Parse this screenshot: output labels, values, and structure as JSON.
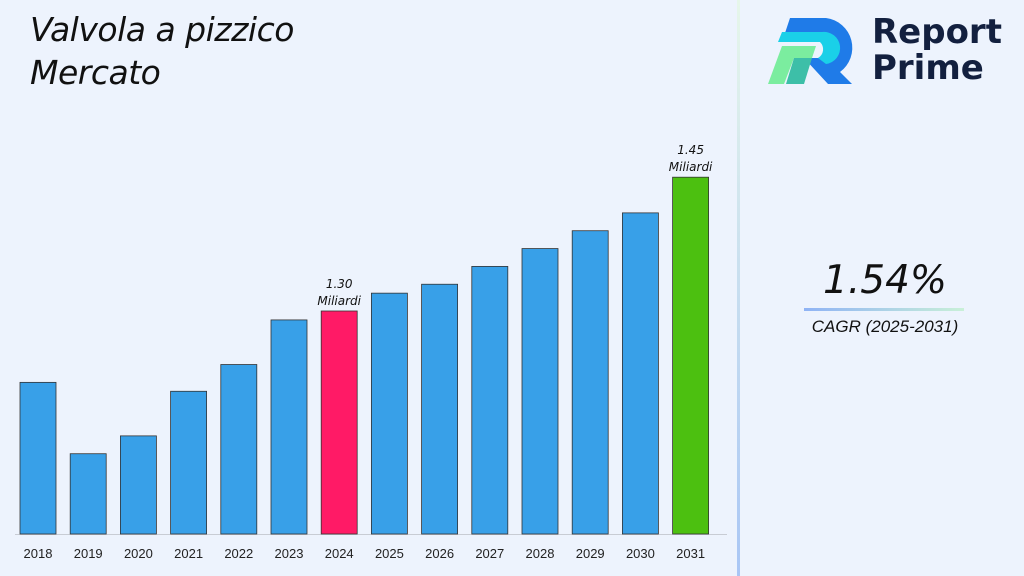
{
  "title_line1": "Valvola a pizzico",
  "title_line2": "Mercato",
  "logo": {
    "line1": "Report",
    "line2": "Prime"
  },
  "cagr": {
    "value": "1.54%",
    "label": "CAGR (2025-2031)"
  },
  "colors": {
    "default_bar": "#38a0e8",
    "highlight_2024": "#ff1a66",
    "highlight_2031": "#4cc010",
    "background": "#edf3fd"
  },
  "chart_data": {
    "type": "bar",
    "categories": [
      "2018",
      "2019",
      "2020",
      "2021",
      "2022",
      "2023",
      "2024",
      "2025",
      "2026",
      "2027",
      "2028",
      "2029",
      "2030",
      "2031"
    ],
    "values": [
      1.22,
      1.14,
      1.16,
      1.21,
      1.24,
      1.29,
      1.3,
      1.32,
      1.33,
      1.35,
      1.37,
      1.39,
      1.41,
      1.45
    ],
    "ylim": [
      1.05,
      1.5
    ],
    "grid": false,
    "data_labels": [
      {
        "category": "2024",
        "value": "1.30",
        "unit": "Miliardi"
      },
      {
        "category": "2031",
        "value": "1.45",
        "unit": "Miliardi"
      }
    ],
    "xlabel": "",
    "ylabel": ""
  }
}
